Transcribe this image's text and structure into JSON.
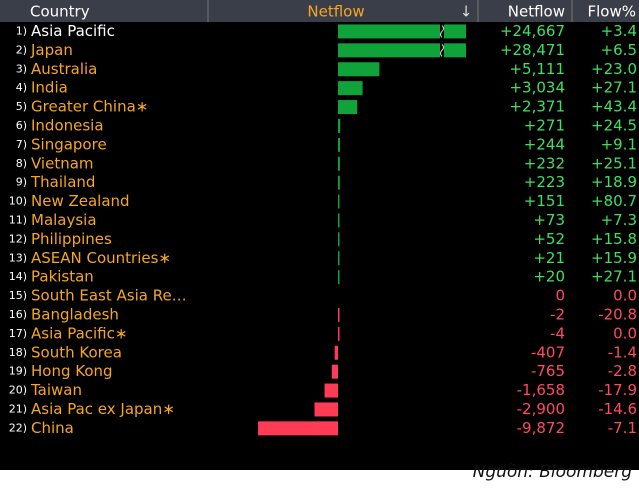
{
  "header": {
    "columns": [
      "Country",
      "Netflow",
      "Netflow",
      "Flow%"
    ],
    "sort_arrow": "↓"
  },
  "positive_color": "#0fa33a",
  "negative_color": "#ff3b55",
  "positive_text_color": "#3fe05f",
  "negative_text_color": "#ff4a5f",
  "rows": [
    {
      "rank": "1)",
      "name": "Asia Pacific",
      "netflow_value": 24667,
      "netflow": "+24,667",
      "flow_pct": "+3.4"
    },
    {
      "rank": "2)",
      "name": "Japan",
      "netflow_value": 28471,
      "netflow": "+28,471",
      "flow_pct": "+6.5"
    },
    {
      "rank": "3)",
      "name": "Australia",
      "netflow_value": 5111,
      "netflow": "+5,111",
      "flow_pct": "+23.0"
    },
    {
      "rank": "4)",
      "name": "India",
      "netflow_value": 3034,
      "netflow": "+3,034",
      "flow_pct": "+27.1"
    },
    {
      "rank": "5)",
      "name": "Greater China∗",
      "netflow_value": 2371,
      "netflow": "+2,371",
      "flow_pct": "+43.4"
    },
    {
      "rank": "6)",
      "name": "Indonesia",
      "netflow_value": 271,
      "netflow": "+271",
      "flow_pct": "+24.5"
    },
    {
      "rank": "7)",
      "name": "Singapore",
      "netflow_value": 244,
      "netflow": "+244",
      "flow_pct": "+9.1"
    },
    {
      "rank": "8)",
      "name": "Vietnam",
      "netflow_value": 232,
      "netflow": "+232",
      "flow_pct": "+25.1"
    },
    {
      "rank": "9)",
      "name": "Thailand",
      "netflow_value": 223,
      "netflow": "+223",
      "flow_pct": "+18.9"
    },
    {
      "rank": "10)",
      "name": "New Zealand",
      "netflow_value": 151,
      "netflow": "+151",
      "flow_pct": "+80.7"
    },
    {
      "rank": "11)",
      "name": "Malaysia",
      "netflow_value": 73,
      "netflow": "+73",
      "flow_pct": "+7.3"
    },
    {
      "rank": "12)",
      "name": "Philippines",
      "netflow_value": 52,
      "netflow": "+52",
      "flow_pct": "+15.8"
    },
    {
      "rank": "13)",
      "name": "ASEAN Countries∗",
      "netflow_value": 21,
      "netflow": "+21",
      "flow_pct": "+15.9"
    },
    {
      "rank": "14)",
      "name": "Pakistan",
      "netflow_value": 20,
      "netflow": "+20",
      "flow_pct": "+27.1"
    },
    {
      "rank": "15)",
      "name": "South East Asia Re…",
      "netflow_value": 0,
      "netflow": "0",
      "flow_pct": "0.0"
    },
    {
      "rank": "16)",
      "name": "Bangladesh",
      "netflow_value": -2,
      "netflow": "-2",
      "flow_pct": "-20.8"
    },
    {
      "rank": "17)",
      "name": "Asia Pacific∗",
      "netflow_value": -4,
      "netflow": "-4",
      "flow_pct": "0.0"
    },
    {
      "rank": "18)",
      "name": "South Korea",
      "netflow_value": -407,
      "netflow": "-407",
      "flow_pct": "-1.4"
    },
    {
      "rank": "19)",
      "name": "Hong Kong",
      "netflow_value": -765,
      "netflow": "-765",
      "flow_pct": "-2.8"
    },
    {
      "rank": "20)",
      "name": "Taiwan",
      "netflow_value": -1658,
      "netflow": "-1,658",
      "flow_pct": "-17.9"
    },
    {
      "rank": "21)",
      "name": "Asia Pac ex Japan∗",
      "netflow_value": -2900,
      "netflow": "-2,900",
      "flow_pct": "-14.6"
    },
    {
      "rank": "22)",
      "name": "China",
      "netflow_value": -9872,
      "netflow": "-9,872",
      "flow_pct": "-7.1"
    }
  ],
  "source": "Nguồn: Bloomberg"
}
